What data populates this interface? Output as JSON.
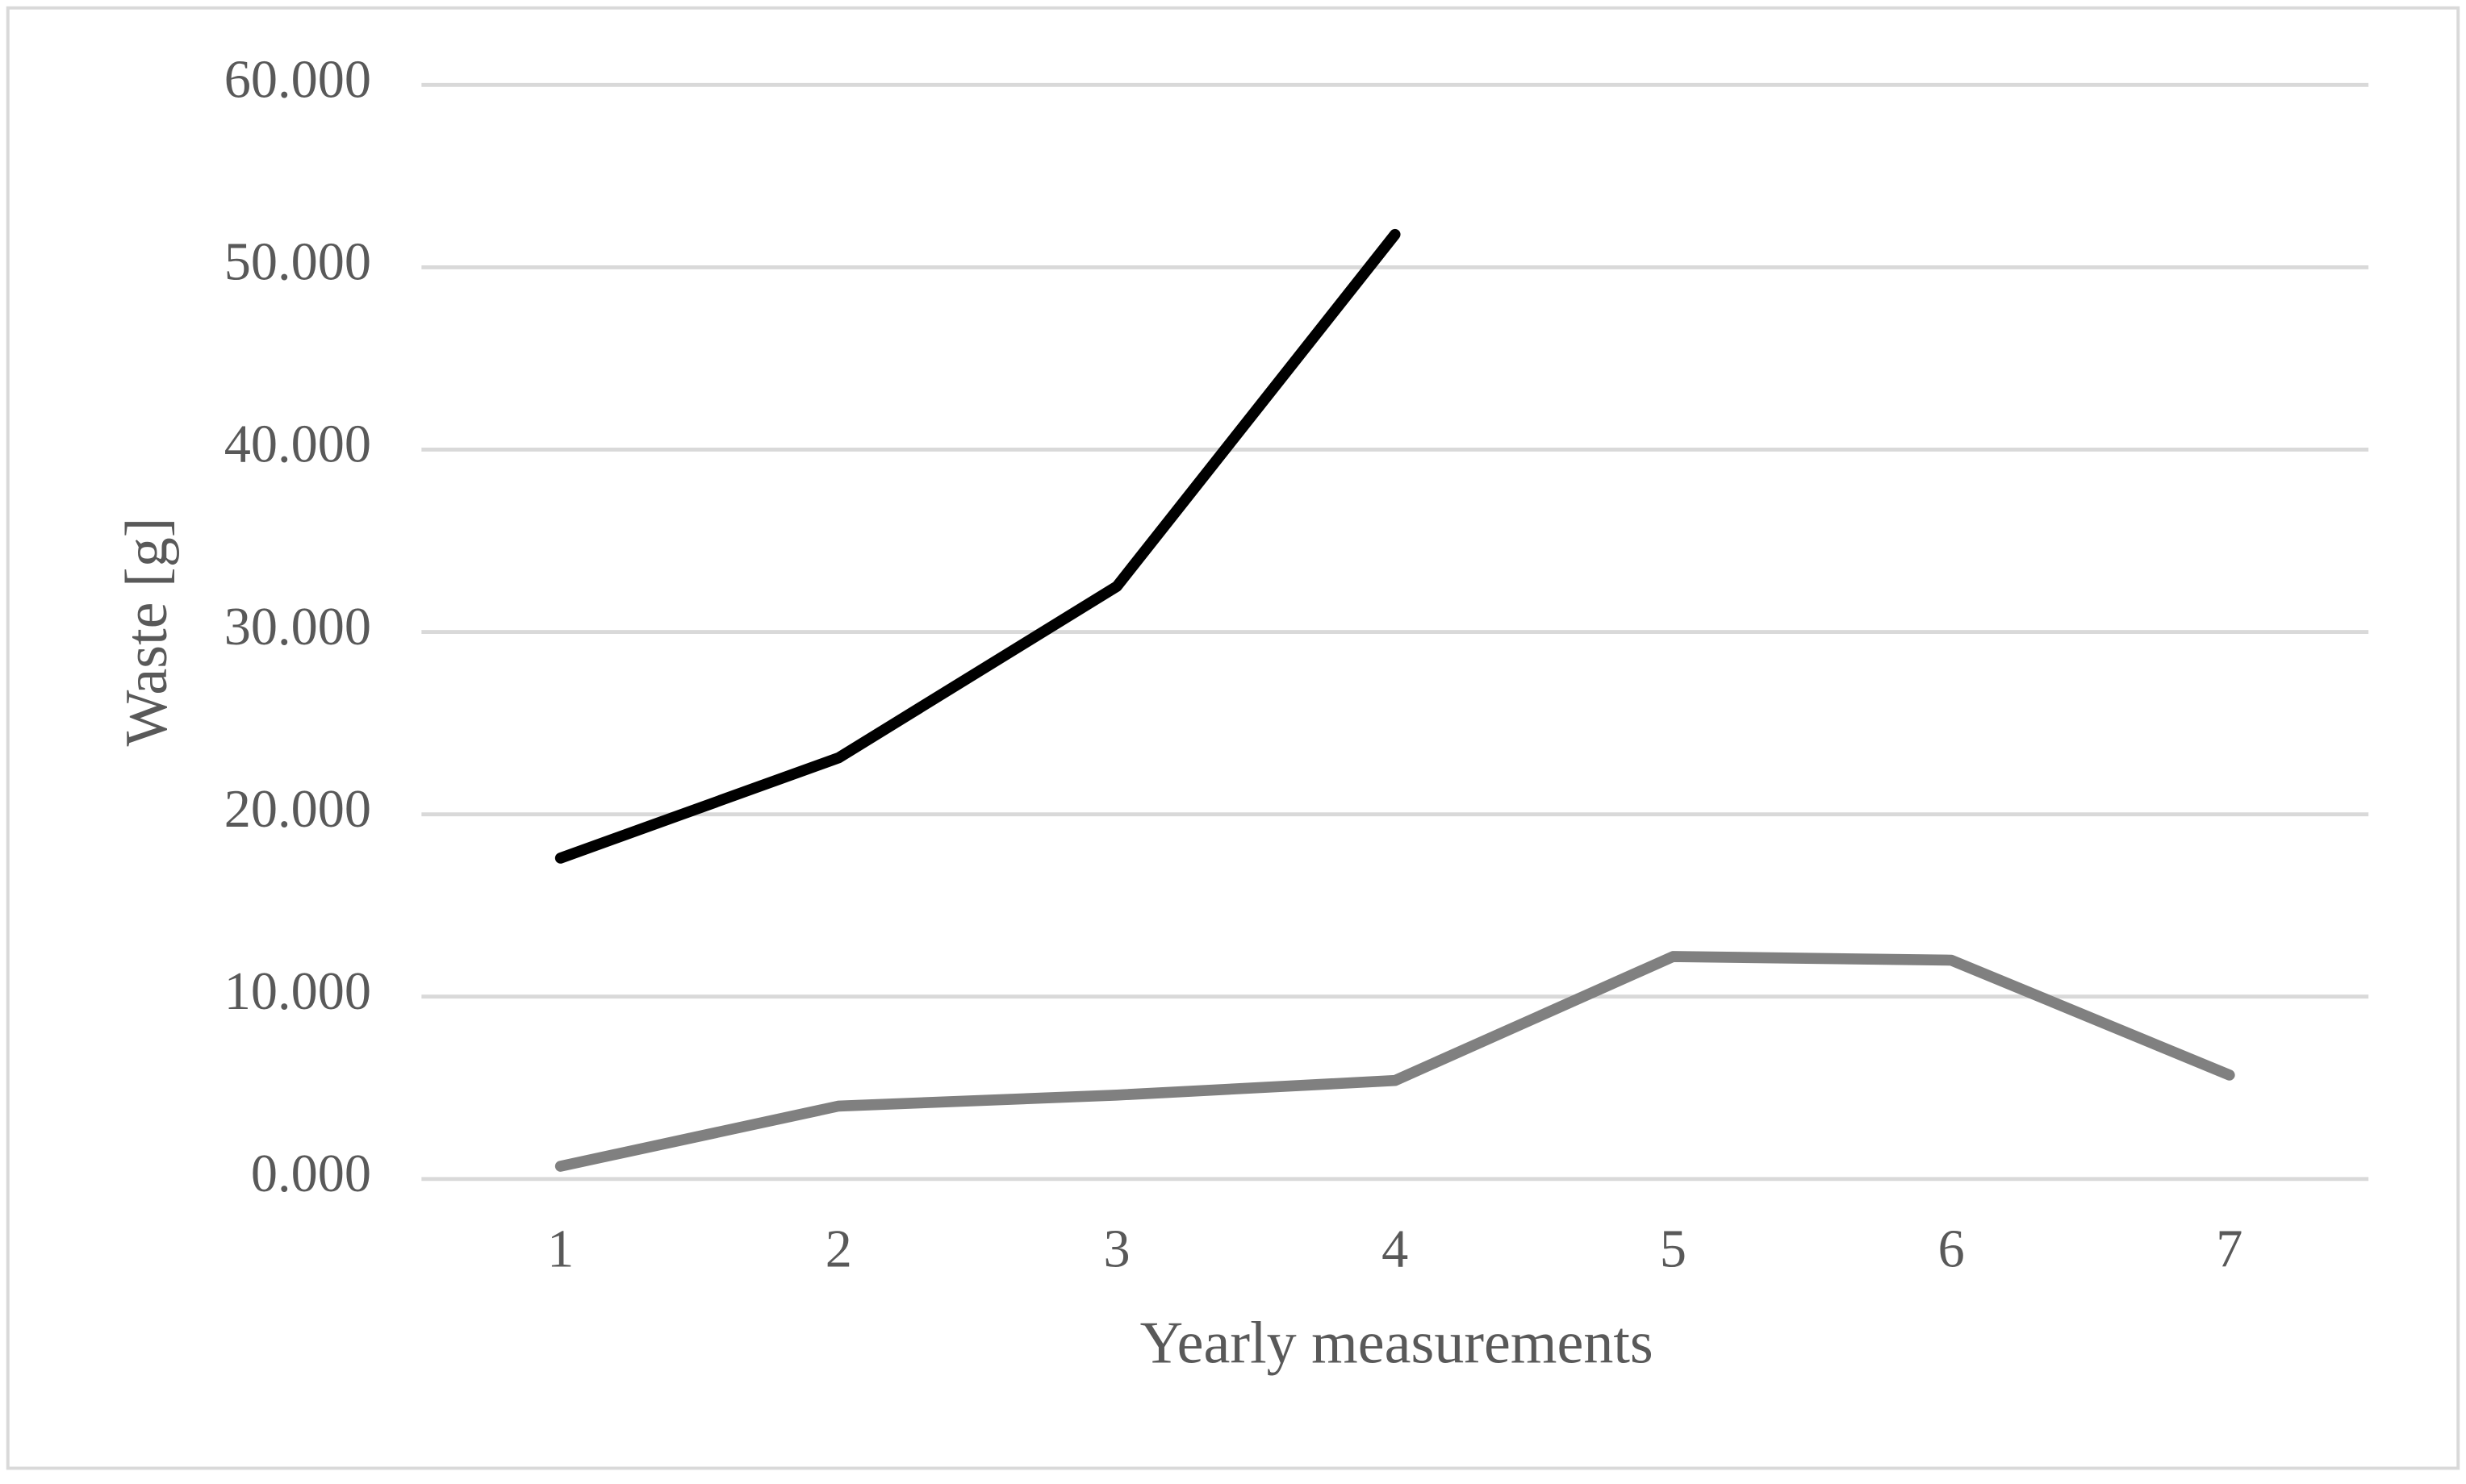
{
  "chart_data": {
    "type": "line",
    "x_label": "Yearly measurements",
    "y_label": "Waste [g]",
    "categories": [
      1,
      2,
      3,
      4,
      5,
      6,
      7
    ],
    "series": [
      {
        "color": "#000000",
        "values": [
          17600,
          23100,
          32500,
          51800,
          null,
          null,
          null
        ]
      },
      {
        "color": "#808080",
        "values": [
          700,
          4000,
          4600,
          5400,
          12200,
          12000,
          5700
        ]
      }
    ],
    "ylim": [
      0,
      60000
    ],
    "yticks": [
      {
        "value": 0,
        "label": "0.000"
      },
      {
        "value": 10000,
        "label": "10.000"
      },
      {
        "value": 20000,
        "label": "20.000"
      },
      {
        "value": 30000,
        "label": "30.000"
      },
      {
        "value": 40000,
        "label": "40.000"
      },
      {
        "value": 50000,
        "label": "50.000"
      },
      {
        "value": 60000,
        "label": "60.000"
      }
    ],
    "grid": true
  }
}
